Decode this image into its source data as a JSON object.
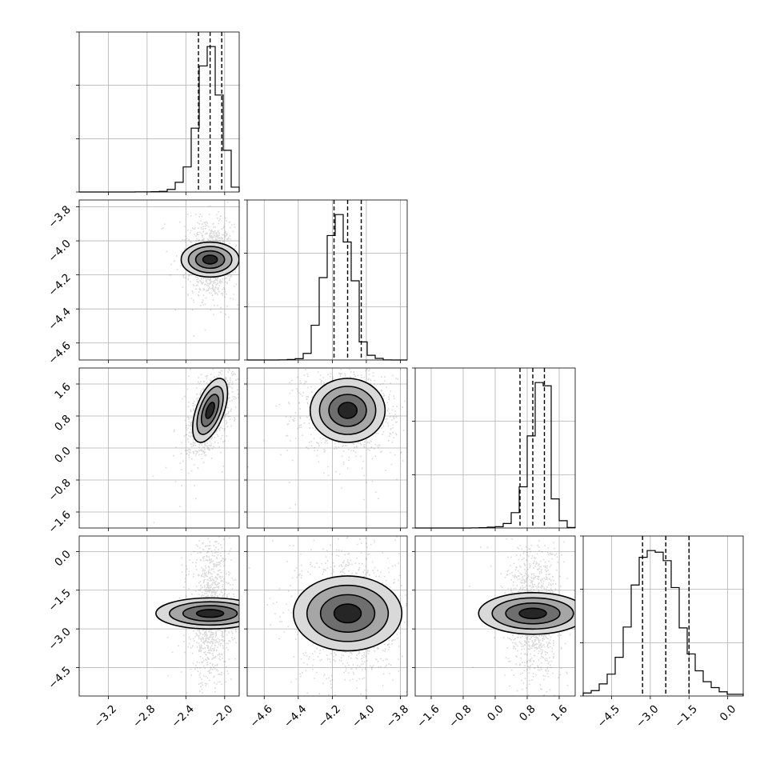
{
  "chart_data": {
    "type": "corner",
    "grid": true,
    "parameters": [
      {
        "range": [
          -3.5,
          -1.85
        ],
        "ticks": [
          -3.2,
          -2.8,
          -2.4,
          -2.0
        ],
        "tick_labels": [
          "−3.2",
          "−2.8",
          "−2.4",
          "−2.0"
        ],
        "quantiles": [
          -2.27,
          -2.15,
          -2.03
        ],
        "hist": {
          "edges_start": -3.5,
          "bin_width": 0.0825,
          "counts": [
            0,
            0,
            0,
            0,
            0,
            0,
            0,
            1,
            1,
            2,
            4,
            16,
            60,
            155,
            395,
            780,
            900,
            600,
            258,
            30
          ]
        }
      },
      {
        "range": [
          -4.7,
          -3.76
        ],
        "ticks": [
          -4.6,
          -4.4,
          -4.2,
          -4.0,
          -3.8
        ],
        "tick_labels": [
          "−4.6",
          "−4.4",
          "−4.2",
          "−4.0",
          "−3.8"
        ],
        "quantiles": [
          -4.19,
          -4.11,
          -4.03
        ],
        "hist": {
          "edges_start": -4.7,
          "bin_width": 0.047,
          "counts": [
            0,
            0,
            0,
            0,
            1,
            3,
            8,
            41,
            215,
            510,
            770,
            900,
            730,
            490,
            112,
            29,
            10,
            1,
            0,
            0
          ]
        }
      },
      {
        "range": [
          -2.0,
          2.0
        ],
        "ticks": [
          -1.6,
          -0.8,
          0.0,
          0.8,
          1.6
        ],
        "tick_labels": [
          "−1.6",
          "−0.8",
          "0.0",
          "0.8",
          "1.6"
        ],
        "quantiles": [
          0.62,
          0.94,
          1.23
        ],
        "hist": {
          "edges_start": -2.0,
          "bin_width": 0.2,
          "counts": [
            0,
            0,
            0,
            0,
            0,
            0,
            0,
            1,
            2,
            5,
            8,
            28,
            95,
            255,
            570,
            900,
            880,
            180,
            45,
            3
          ]
        }
      },
      {
        "range": [
          -5.6,
          0.6
        ],
        "ticks": [
          -4.5,
          -3.0,
          -1.5,
          0.0
        ],
        "tick_labels": [
          "−4.5",
          "−3.0",
          "−1.5",
          "0.0"
        ],
        "quantiles": [
          -3.3,
          -2.4,
          -1.5
        ],
        "hist": {
          "edges_start": -5.6,
          "bin_width": 0.31,
          "counts": [
            18,
            32,
            72,
            130,
            230,
            410,
            660,
            825,
            865,
            855,
            805,
            645,
            405,
            250,
            150,
            85,
            50,
            25,
            10,
            10
          ]
        }
      }
    ],
    "pairs": [
      {
        "x": 0,
        "y": 1,
        "center": [
          -2.15,
          -4.11
        ],
        "spread": [
          0.09,
          0.085
        ],
        "corr": 0.0
      },
      {
        "x": 0,
        "y": 2,
        "center": [
          -2.15,
          0.94
        ],
        "spread": [
          0.09,
          0.4
        ],
        "corr": 0.55
      },
      {
        "x": 0,
        "y": 3,
        "center": [
          -2.15,
          -2.4
        ],
        "spread": [
          0.08,
          1.05
        ],
        "corr": 0.0
      },
      {
        "x": 1,
        "y": 2,
        "center": [
          -4.11,
          0.94
        ],
        "spread": [
          0.11,
          0.4
        ],
        "corr": 0.0
      },
      {
        "x": 1,
        "y": 3,
        "center": [
          -4.11,
          -2.4
        ],
        "spread": [
          0.11,
          1.05
        ],
        "corr": 0.0
      },
      {
        "x": 2,
        "y": 3,
        "center": [
          0.94,
          -2.4
        ],
        "spread": [
          0.26,
          1.05
        ],
        "corr": 0.0
      }
    ],
    "contour_levels_sigma": [
      0.5,
      1.0,
      1.5,
      2.0
    ]
  }
}
